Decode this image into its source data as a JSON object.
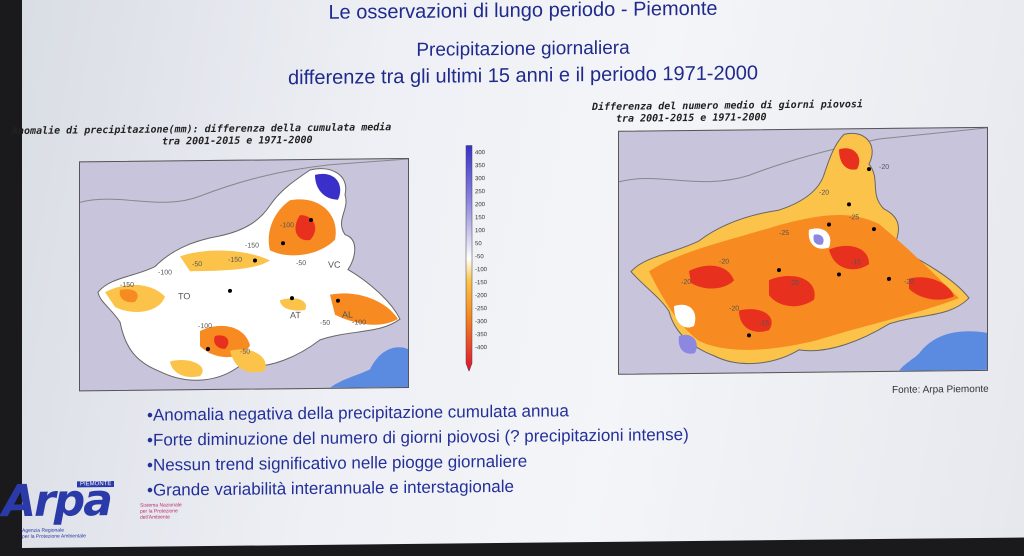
{
  "header": {
    "title": "Le osservazioni di lungo periodo - Piemonte",
    "subtitle": "Precipitazione giornaliera",
    "subtitle2": "differenze tra gli ultimi 15 anni e il periodo 1971-2000"
  },
  "left_map": {
    "label_line1": "Anomalie di precipitazione(mm): differenza della cumulata media",
    "label_line2": "tra 2001-2015 e 1971-2000",
    "contour_labels": [
      "-150",
      "-100",
      "-50",
      "-150",
      "-100",
      "-50",
      "-100",
      "-150",
      "-50",
      "-50",
      "-100"
    ],
    "city_labels": [
      "TO",
      "AT",
      "VC",
      "AL"
    ]
  },
  "colorbar": {
    "ticks": [
      "400",
      "350",
      "300",
      "250",
      "200",
      "150",
      "100",
      "50",
      "-50",
      "-100",
      "-150",
      "-200",
      "-250",
      "-300",
      "-350",
      "-400"
    ]
  },
  "right_map": {
    "label_line1": "Differenza del numero medio di giorni piovosi",
    "label_line2": "tra 2001-2015 e 1971-2000",
    "contour_labels": [
      "-20",
      "-20",
      "-15",
      "-20",
      "-20",
      "-25",
      "-15",
      "-20",
      "-20",
      "-25",
      "-20"
    ]
  },
  "source": "Fonte: Arpa Piemonte",
  "bullets": [
    "•Anomalia negativa della precipitazione cumulata annua",
    "•Forte diminuzione del numero di giorni piovosi (? precipitazioni intense)",
    "•Nessun trend significativo nelle piogge giornaliere",
    "•Grande variabilità interannuale e interstagionale"
  ],
  "logo": {
    "text": "Arpa",
    "top": "PIEMONTE",
    "sub1": "Agenzia Regionale",
    "sub2": "per la Protezione Ambientale",
    "partner1": "Sistema Nazionale",
    "partner2": "per la Protezione",
    "partner3": "dell'Ambiente"
  },
  "colors": {
    "title": "#1f2a8c",
    "strong_negative": "#e8301e",
    "negative": "#f78a20",
    "mild_negative": "#fbc34a",
    "neutral": "#ffffff",
    "positive": "#8c87e0",
    "strong_positive": "#3a2fc8"
  }
}
